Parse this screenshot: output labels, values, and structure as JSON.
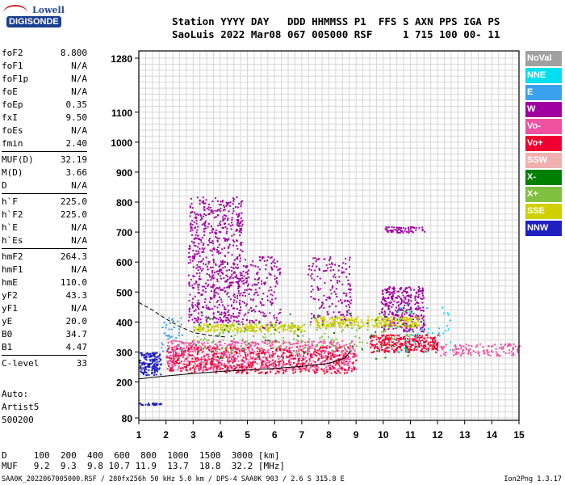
{
  "logo": {
    "line1": "Lowell",
    "line2": "DIGISONDE"
  },
  "header": {
    "line1": "Station YYYY DAY   DDD HHMMSS P1  FFS S AXN PPS IGA PS",
    "line2": "SaoLuis 2022 Mar08 067 005000 RSF     1 715 100 00- 11"
  },
  "params_groups": [
    [
      [
        "foF2",
        "8.800"
      ],
      [
        "foF1",
        "N/A"
      ],
      [
        "foF1p",
        "N/A"
      ],
      [
        "foE",
        "N/A"
      ],
      [
        "foEp",
        "0.35"
      ],
      [
        "fxI",
        "9.50"
      ],
      [
        "foEs",
        "N/A"
      ],
      [
        "fmin",
        "2.40"
      ]
    ],
    [
      [
        "MUF(D)",
        "32.19"
      ],
      [
        "M(D)",
        "3.66"
      ],
      [
        "D",
        "N/A"
      ]
    ],
    [
      [
        "h`F",
        "225.0"
      ],
      [
        "h`F2",
        "225.0"
      ],
      [
        "h`E",
        "N/A"
      ],
      [
        "h`Es",
        "N/A"
      ]
    ],
    [
      [
        "hmF2",
        "264.3"
      ],
      [
        "hmF1",
        "N/A"
      ],
      [
        "hmE",
        "110.0"
      ],
      [
        "yF2",
        "43.3"
      ],
      [
        "yF1",
        "N/A"
      ],
      [
        "yE",
        "20.0"
      ],
      [
        "B0",
        "34.7"
      ],
      [
        "B1",
        "4.47"
      ]
    ],
    [
      [
        "C-level",
        "33"
      ]
    ]
  ],
  "auto": {
    "line1": "Auto:",
    "line2": "Artist5",
    "line3": "500200"
  },
  "legend": [
    {
      "label": "NoVal",
      "color": "#a0a0a0"
    },
    {
      "label": "NNE",
      "color": "#00e0f0"
    },
    {
      "label": "E",
      "color": "#3aa0f0"
    },
    {
      "label": "W",
      "color": "#a000a0"
    },
    {
      "label": "Vo-",
      "color": "#f050a0"
    },
    {
      "label": "Vo+",
      "color": "#f00030"
    },
    {
      "label": "SSW",
      "color": "#f0b0b0"
    },
    {
      "label": "X-",
      "color": "#008000"
    },
    {
      "label": "X+",
      "color": "#80c040"
    },
    {
      "label": "SSE",
      "color": "#d0d000"
    },
    {
      "label": "NNW",
      "color": "#2020c0"
    }
  ],
  "dtable": {
    "line1": "D     100  200  400  600  800  1000  1500  3000 [km]",
    "line2": "MUF   9.2  9.3  9.8 10.7 11.9  13.7  18.8  32.2 [MHz]"
  },
  "footer": "SAA0K_2022067005000.RSF / 280fx256h 50 kHz 5.0 km / DPS-4 SAA0K 903 / 2.6 S 315.8 E",
  "version": "Ion2Png 1.3.17",
  "chart_data": {
    "type": "scatter",
    "x_ticks": [
      1,
      2,
      3,
      4,
      5,
      6,
      7,
      8,
      9,
      10,
      11,
      12,
      13,
      14,
      15
    ],
    "y_ticks": [
      80,
      200,
      300,
      400,
      500,
      600,
      700,
      800,
      900,
      1000,
      1100,
      1280
    ],
    "xlim": [
      1,
      15
    ],
    "ylim": [
      80,
      1280
    ],
    "grid": true,
    "legend_position": "right",
    "clusters": [
      {
        "series": "NNW",
        "x": [
          1.0,
          1.8
        ],
        "y": [
          225,
          300
        ],
        "n": 160
      },
      {
        "series": "NNW",
        "x": [
          1.0,
          1.8
        ],
        "y": [
          125,
          132
        ],
        "n": 25
      },
      {
        "series": "E",
        "x": [
          1.8,
          2.6
        ],
        "y": [
          300,
          420
        ],
        "n": 40
      },
      {
        "series": "W",
        "x": [
          2.8,
          4.8
        ],
        "y": [
          400,
          820
        ],
        "n": 700
      },
      {
        "series": "W",
        "x": [
          4.8,
          6.2
        ],
        "y": [
          380,
          620
        ],
        "n": 180
      },
      {
        "series": "W",
        "x": [
          7.2,
          8.8
        ],
        "y": [
          400,
          620
        ],
        "n": 160
      },
      {
        "series": "W",
        "x": [
          9.9,
          11.5
        ],
        "y": [
          370,
          520
        ],
        "n": 320
      },
      {
        "series": "W",
        "x": [
          10.0,
          11.5
        ],
        "y": [
          700,
          720
        ],
        "n": 60
      },
      {
        "series": "SSE",
        "x": [
          3.0,
          7.0
        ],
        "y": [
          370,
          395
        ],
        "n": 220
      },
      {
        "series": "SSE",
        "x": [
          7.5,
          11.3
        ],
        "y": [
          385,
          420
        ],
        "n": 260
      },
      {
        "series": "Vo-",
        "x": [
          2.0,
          9.0
        ],
        "y": [
          240,
          340
        ],
        "n": 900
      },
      {
        "series": "Vo+",
        "x": [
          2.0,
          9.0
        ],
        "y": [
          230,
          320
        ],
        "n": 500
      },
      {
        "series": "Vo+",
        "x": [
          9.5,
          12.0
        ],
        "y": [
          300,
          360
        ],
        "n": 300
      },
      {
        "series": "Vo-",
        "x": [
          12.0,
          15.0
        ],
        "y": [
          290,
          330
        ],
        "n": 120
      },
      {
        "series": "X+",
        "x": [
          3.0,
          11.0
        ],
        "y": [
          300,
          400
        ],
        "n": 160
      },
      {
        "series": "X-",
        "x": [
          3.0,
          11.0
        ],
        "y": [
          280,
          440
        ],
        "n": 60
      },
      {
        "series": "NNE",
        "x": [
          10.3,
          12.5
        ],
        "y": [
          300,
          460
        ],
        "n": 50
      }
    ],
    "profile_curve": {
      "x": [
        1.0,
        2.0,
        3.0,
        4.0,
        5.0,
        6.0,
        7.0,
        8.0,
        8.6,
        8.8
      ],
      "y": [
        210,
        220,
        228,
        235,
        240,
        245,
        252,
        262,
        280,
        305
      ]
    },
    "dashed_curve": {
      "x": [
        1.0,
        1.5,
        2.0,
        2.5,
        3.0,
        3.6,
        4.2
      ],
      "y": [
        465,
        440,
        410,
        385,
        365,
        355,
        350
      ]
    }
  }
}
